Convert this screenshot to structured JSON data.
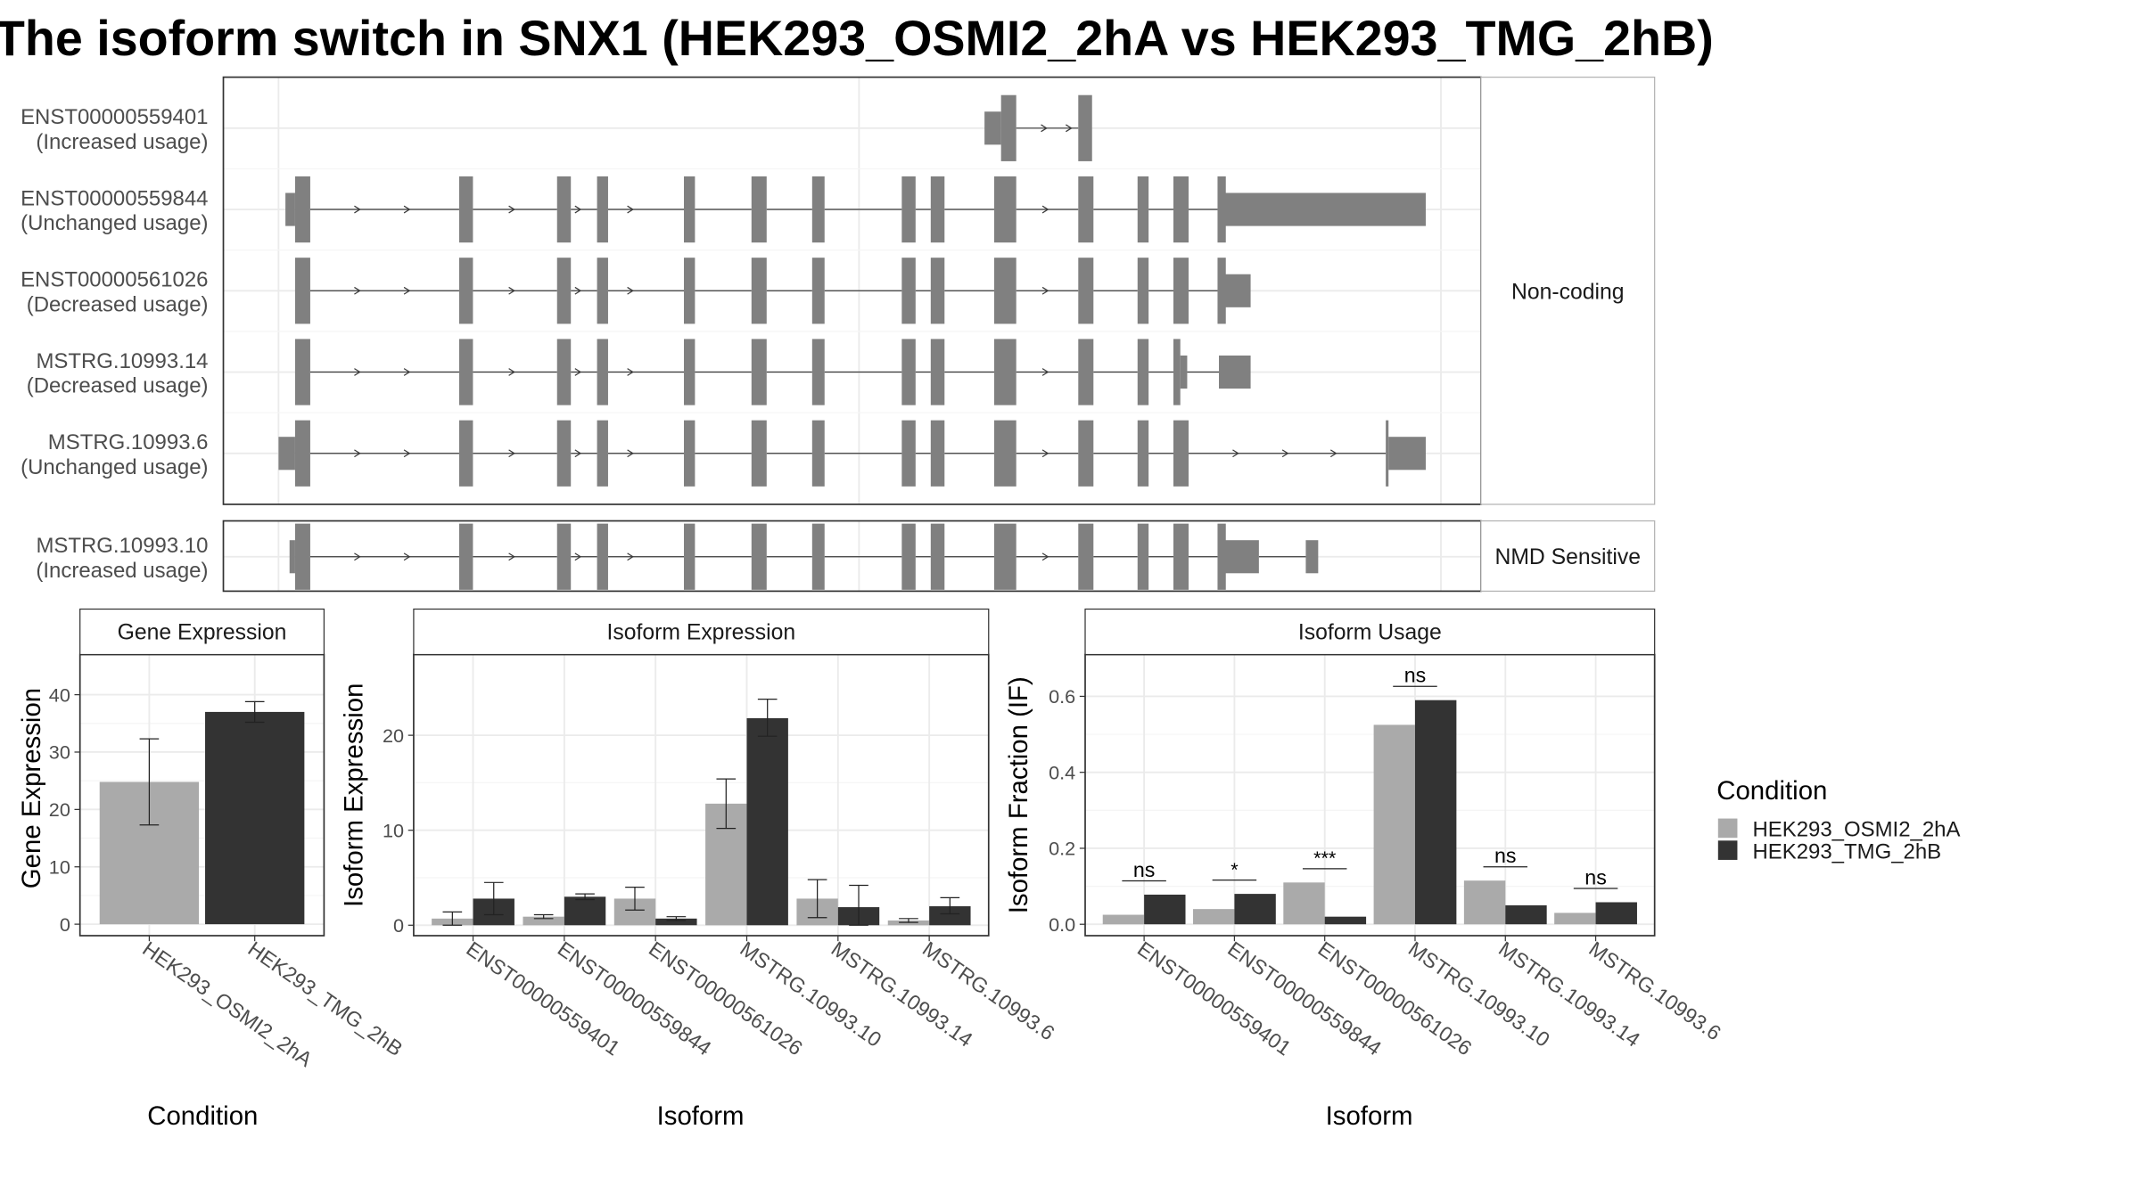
{
  "title": "The isoform switch in SNX1 (HEK293_OSMI2_2hA vs HEK293_TMG_2hB)",
  "colors": {
    "HEK293_OSMI2_2hA": "#aaaaaa",
    "HEK293_TMG_2hB": "#333333",
    "structure": "#808080",
    "line": "#3a3a3a",
    "grid": "#ebebeb",
    "panel_border": "#333333",
    "strip_border": "#b3b3b3"
  },
  "legend": {
    "title": "Condition",
    "items": [
      "HEK293_OSMI2_2hA",
      "HEK293_TMG_2hB"
    ]
  },
  "transcripts": {
    "groups": [
      {
        "label": "Non-coding",
        "tracks": [
          {
            "id": "ENST00000559401",
            "note": "(Increased usage)",
            "utr": [
              [
                714,
                726
              ]
            ],
            "cds": [
              [
                726,
                737
              ],
              [
                782,
                792
              ]
            ],
            "intron": [
              [
                737,
                782
              ]
            ],
            "arrows": [
              758,
              776
            ]
          },
          {
            "id": "ENST00000559844",
            "note": "(Unchanged usage)",
            "utr": [
              [
                207,
                214
              ],
              [
                888,
                1034
              ]
            ],
            "cds": [
              [
                214,
                225
              ],
              [
                333,
                343
              ],
              [
                404,
                414
              ],
              [
                433,
                441
              ],
              [
                496,
                504
              ],
              [
                545,
                556
              ],
              [
                589,
                598
              ],
              [
                654,
                664
              ],
              [
                675,
                685
              ],
              [
                721,
                737
              ],
              [
                782,
                793
              ],
              [
                825,
                833
              ],
              [
                851,
                862
              ],
              [
                883,
                889
              ]
            ],
            "intron": [
              [
                225,
                333
              ],
              [
                343,
                404
              ],
              [
                414,
                433
              ],
              [
                441,
                496
              ],
              [
                504,
                545
              ],
              [
                556,
                589
              ],
              [
                598,
                654
              ],
              [
                664,
                675
              ],
              [
                685,
                721
              ],
              [
                737,
                782
              ],
              [
                793,
                825
              ],
              [
                833,
                851
              ],
              [
                862,
                883
              ]
            ],
            "arrows": [
              260,
              296,
              372,
              420,
              458,
              759
            ]
          },
          {
            "id": "ENST00000561026",
            "note": "(Decreased usage)",
            "utr": [
              [
                888,
                907
              ]
            ],
            "cds": [
              [
                214,
                225
              ],
              [
                333,
                343
              ],
              [
                404,
                414
              ],
              [
                433,
                441
              ],
              [
                496,
                504
              ],
              [
                545,
                556
              ],
              [
                589,
                598
              ],
              [
                654,
                664
              ],
              [
                675,
                685
              ],
              [
                721,
                737
              ],
              [
                782,
                793
              ],
              [
                825,
                833
              ],
              [
                851,
                862
              ],
              [
                883,
                889
              ]
            ],
            "intron": [
              [
                225,
                333
              ],
              [
                343,
                404
              ],
              [
                414,
                433
              ],
              [
                441,
                496
              ],
              [
                504,
                545
              ],
              [
                556,
                589
              ],
              [
                598,
                654
              ],
              [
                664,
                675
              ],
              [
                685,
                721
              ],
              [
                737,
                782
              ],
              [
                793,
                825
              ],
              [
                833,
                851
              ],
              [
                862,
                883
              ]
            ],
            "arrows": [
              260,
              296,
              372,
              420,
              458,
              759
            ]
          },
          {
            "id": "MSTRG.10993.14",
            "note": "(Decreased usage)",
            "utr": [
              [
                856,
                861
              ],
              [
                884,
                907
              ]
            ],
            "cds": [
              [
                214,
                225
              ],
              [
                333,
                343
              ],
              [
                404,
                414
              ],
              [
                433,
                441
              ],
              [
                496,
                504
              ],
              [
                545,
                556
              ],
              [
                589,
                598
              ],
              [
                654,
                664
              ],
              [
                675,
                685
              ],
              [
                721,
                737
              ],
              [
                782,
                793
              ],
              [
                825,
                833
              ],
              [
                851,
                856
              ]
            ],
            "intron": [
              [
                225,
                333
              ],
              [
                343,
                404
              ],
              [
                414,
                433
              ],
              [
                441,
                496
              ],
              [
                504,
                545
              ],
              [
                556,
                589
              ],
              [
                598,
                654
              ],
              [
                664,
                675
              ],
              [
                685,
                721
              ],
              [
                737,
                782
              ],
              [
                793,
                825
              ],
              [
                833,
                851
              ],
              [
                861,
                884
              ]
            ],
            "arrows": [
              260,
              296,
              372,
              420,
              458,
              759
            ]
          },
          {
            "id": "MSTRG.10993.6",
            "note": "(Unchanged usage)",
            "utr": [
              [
                202,
                214
              ],
              [
                1007,
                1034
              ]
            ],
            "cds": [
              [
                214,
                225
              ],
              [
                333,
                343
              ],
              [
                404,
                414
              ],
              [
                433,
                441
              ],
              [
                496,
                504
              ],
              [
                545,
                556
              ],
              [
                589,
                598
              ],
              [
                654,
                664
              ],
              [
                675,
                685
              ],
              [
                721,
                737
              ],
              [
                782,
                793
              ],
              [
                825,
                833
              ],
              [
                851,
                862
              ],
              [
                1005,
                1007
              ]
            ],
            "intron": [
              [
                225,
                333
              ],
              [
                343,
                404
              ],
              [
                414,
                433
              ],
              [
                441,
                496
              ],
              [
                504,
                545
              ],
              [
                556,
                589
              ],
              [
                598,
                654
              ],
              [
                664,
                675
              ],
              [
                685,
                721
              ],
              [
                737,
                782
              ],
              [
                793,
                825
              ],
              [
                833,
                851
              ],
              [
                862,
                1005
              ]
            ],
            "arrows": [
              260,
              296,
              372,
              420,
              458,
              759,
              897,
              933,
              968
            ]
          }
        ]
      },
      {
        "label": "NMD Sensitive",
        "tracks": [
          {
            "id": "MSTRG.10993.10",
            "note": "(Increased usage)",
            "utr": [
              [
                210,
                214
              ],
              [
                888,
                913
              ],
              [
                947,
                956
              ]
            ],
            "cds": [
              [
                214,
                225
              ],
              [
                333,
                343
              ],
              [
                404,
                414
              ],
              [
                433,
                441
              ],
              [
                496,
                504
              ],
              [
                545,
                556
              ],
              [
                589,
                598
              ],
              [
                654,
                664
              ],
              [
                675,
                685
              ],
              [
                721,
                737
              ],
              [
                782,
                793
              ],
              [
                825,
                833
              ],
              [
                851,
                862
              ],
              [
                883,
                889
              ]
            ],
            "intron": [
              [
                225,
                333
              ],
              [
                343,
                404
              ],
              [
                414,
                433
              ],
              [
                441,
                496
              ],
              [
                504,
                545
              ],
              [
                556,
                589
              ],
              [
                598,
                654
              ],
              [
                664,
                675
              ],
              [
                685,
                721
              ],
              [
                737,
                782
              ],
              [
                793,
                825
              ],
              [
                833,
                851
              ],
              [
                862,
                883
              ],
              [
                913,
                947
              ]
            ],
            "arrows": [
              260,
              296,
              372,
              420,
              458,
              759
            ]
          }
        ]
      }
    ]
  },
  "chart_data": [
    {
      "type": "bar",
      "panel_title": "Gene Expression",
      "xlabel": "Condition",
      "ylabel": "Gene Expression",
      "categories": [
        "HEK293_OSMI2_2hA",
        "HEK293_TMG_2hB"
      ],
      "series": [
        {
          "name": "HEK293_OSMI2_2hA",
          "values": [
            24.8,
            null
          ],
          "err_low": [
            17.3,
            null
          ],
          "err_high": [
            32.3,
            null
          ]
        },
        {
          "name": "HEK293_TMG_2hB",
          "values": [
            null,
            37.0
          ],
          "err_low": [
            null,
            35.2
          ],
          "err_high": [
            null,
            38.8
          ]
        }
      ],
      "ylim": [
        -2,
        47
      ],
      "yticks": [
        0,
        10,
        20,
        30,
        40
      ],
      "grid": true
    },
    {
      "type": "bar",
      "panel_title": "Isoform Expression",
      "xlabel": "Isoform",
      "ylabel": "Isoform Expression",
      "categories": [
        "ENST00000559401",
        "ENST00000559844",
        "ENST00000561026",
        "MSTRG.10993.10",
        "MSTRG.10993.14",
        "MSTRG.10993.6"
      ],
      "series": [
        {
          "name": "HEK293_OSMI2_2hA",
          "values": [
            0.7,
            0.9,
            2.8,
            12.8,
            2.8,
            0.5
          ],
          "err_low": [
            0.0,
            0.7,
            1.6,
            10.2,
            0.8,
            0.3
          ],
          "err_high": [
            1.4,
            1.1,
            4.0,
            15.4,
            4.8,
            0.7
          ]
        },
        {
          "name": "HEK293_TMG_2hB",
          "values": [
            2.8,
            3.0,
            0.7,
            21.8,
            1.9,
            2.0
          ],
          "err_low": [
            1.1,
            2.7,
            0.5,
            19.9,
            0.0,
            1.2
          ],
          "err_high": [
            4.5,
            3.3,
            0.9,
            23.8,
            4.2,
            2.9
          ]
        }
      ],
      "ylim": [
        -1.1,
        28.5
      ],
      "yticks": [
        0,
        10,
        20
      ],
      "grid": true
    },
    {
      "type": "bar",
      "panel_title": "Isoform Usage",
      "xlabel": "Isoform",
      "ylabel": "Isoform Fraction (IF)",
      "categories": [
        "ENST00000559401",
        "ENST00000559844",
        "ENST00000561026",
        "MSTRG.10993.10",
        "MSTRG.10993.14",
        "MSTRG.10993.6"
      ],
      "series": [
        {
          "name": "HEK293_OSMI2_2hA",
          "values": [
            0.025,
            0.04,
            0.11,
            0.525,
            0.115,
            0.03
          ]
        },
        {
          "name": "HEK293_TMG_2hB",
          "values": [
            0.078,
            0.08,
            0.02,
            0.59,
            0.05,
            0.058
          ]
        }
      ],
      "significance": [
        "ns",
        "*",
        "***",
        "ns",
        "ns",
        "ns"
      ],
      "ylim": [
        -0.03,
        0.71
      ],
      "yticks": [
        0.0,
        0.2,
        0.4,
        0.6
      ],
      "ytick_labels": [
        "0.0",
        "0.2",
        "0.4",
        "0.6"
      ],
      "grid": true
    }
  ]
}
